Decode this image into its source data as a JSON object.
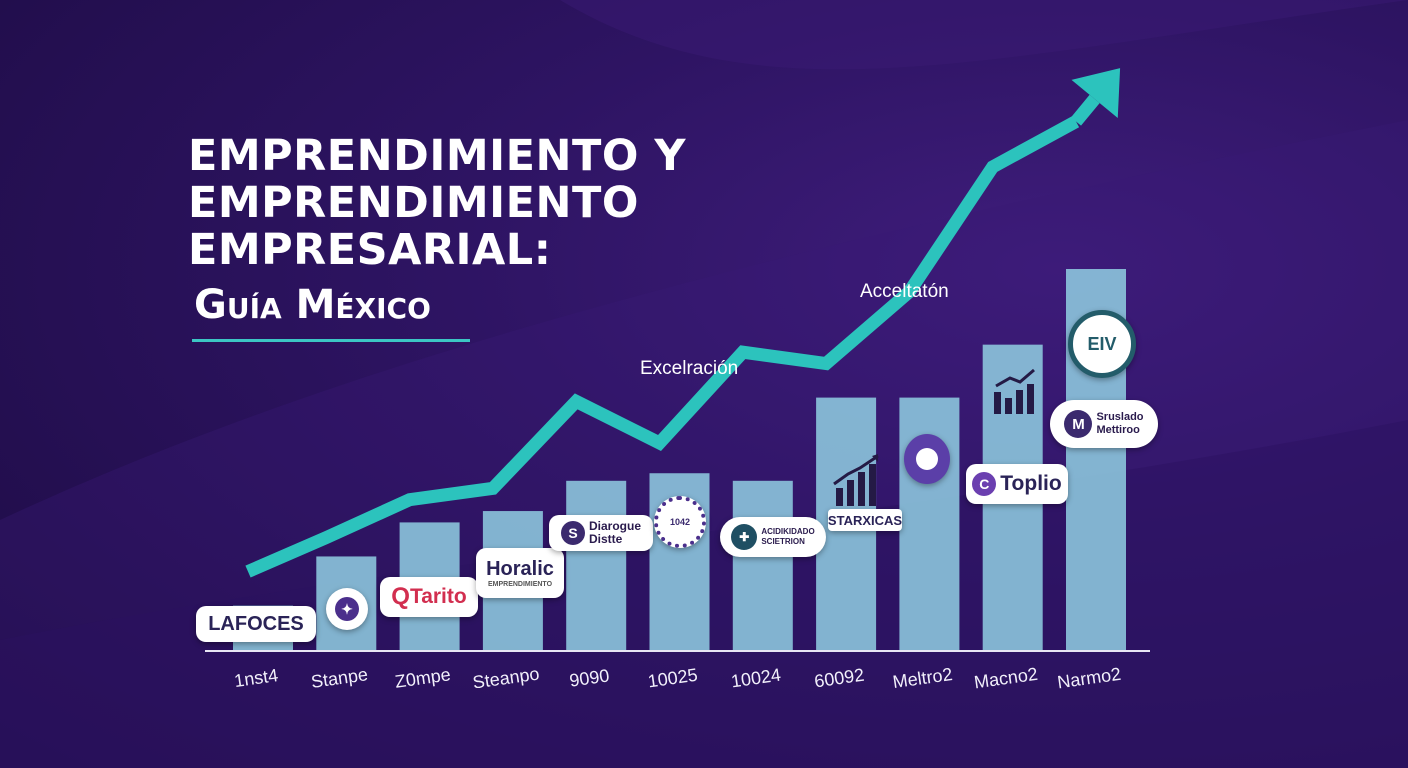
{
  "title": {
    "line1": "EMPRENDIMIENTO Y",
    "line2": "EMPRENDIMIENTO",
    "line3": "EMPRESARIAL:",
    "subtitle": "Guía México"
  },
  "annotations": {
    "excel": "Excelración",
    "accel": "Acceltatón"
  },
  "logos": {
    "lafoces": "LAFOCES",
    "qtarito": "Tarito",
    "qtarito_mark": "Q",
    "horalic": "Horalic",
    "horalic_sub": "EMPRENDIMIENTO",
    "diarogue_l1": "Diarogue",
    "diarogue_l2": "Distte",
    "circle_1042": "1042",
    "acid_l1": "ACIDIKIDADO",
    "acid_l2": "SCIETRION",
    "starxicas": "STARXICAS",
    "toplio": "Toplio",
    "toplio_mark": "C",
    "sruslado_l1": "Sruslado",
    "sruslado_l2": "Mettiroo",
    "sruslado_mark": "M",
    "eiv": "EIV"
  },
  "colors": {
    "bar": "#8ec9df",
    "trend": "#2cc3bd",
    "axis": "#e8e6f4",
    "tick": "#f2f0fb"
  },
  "chart_data": {
    "type": "bar",
    "categories": [
      "1nst4",
      "Stanpe",
      "Z0mpe",
      "Steanpo",
      "9090",
      "10025",
      "10024",
      "60092",
      "Meltro2",
      "Macno2",
      "Narmo2"
    ],
    "series": [
      {
        "values": [
          6,
          12.5,
          17,
          18.5,
          22.5,
          23.5,
          22.5,
          33.5,
          33.5,
          40.5,
          50.5
        ]
      }
    ],
    "trend": {
      "x": [
        0,
        1,
        2,
        3,
        4,
        5,
        6,
        7,
        8,
        9,
        10,
        10.3
      ],
      "values": [
        10.5,
        15,
        20,
        21.5,
        33,
        27.5,
        39.5,
        38,
        47.5,
        64,
        70,
        74
      ]
    },
    "ylim": [
      0,
      75
    ],
    "xlabel": "",
    "ylabel": ""
  }
}
